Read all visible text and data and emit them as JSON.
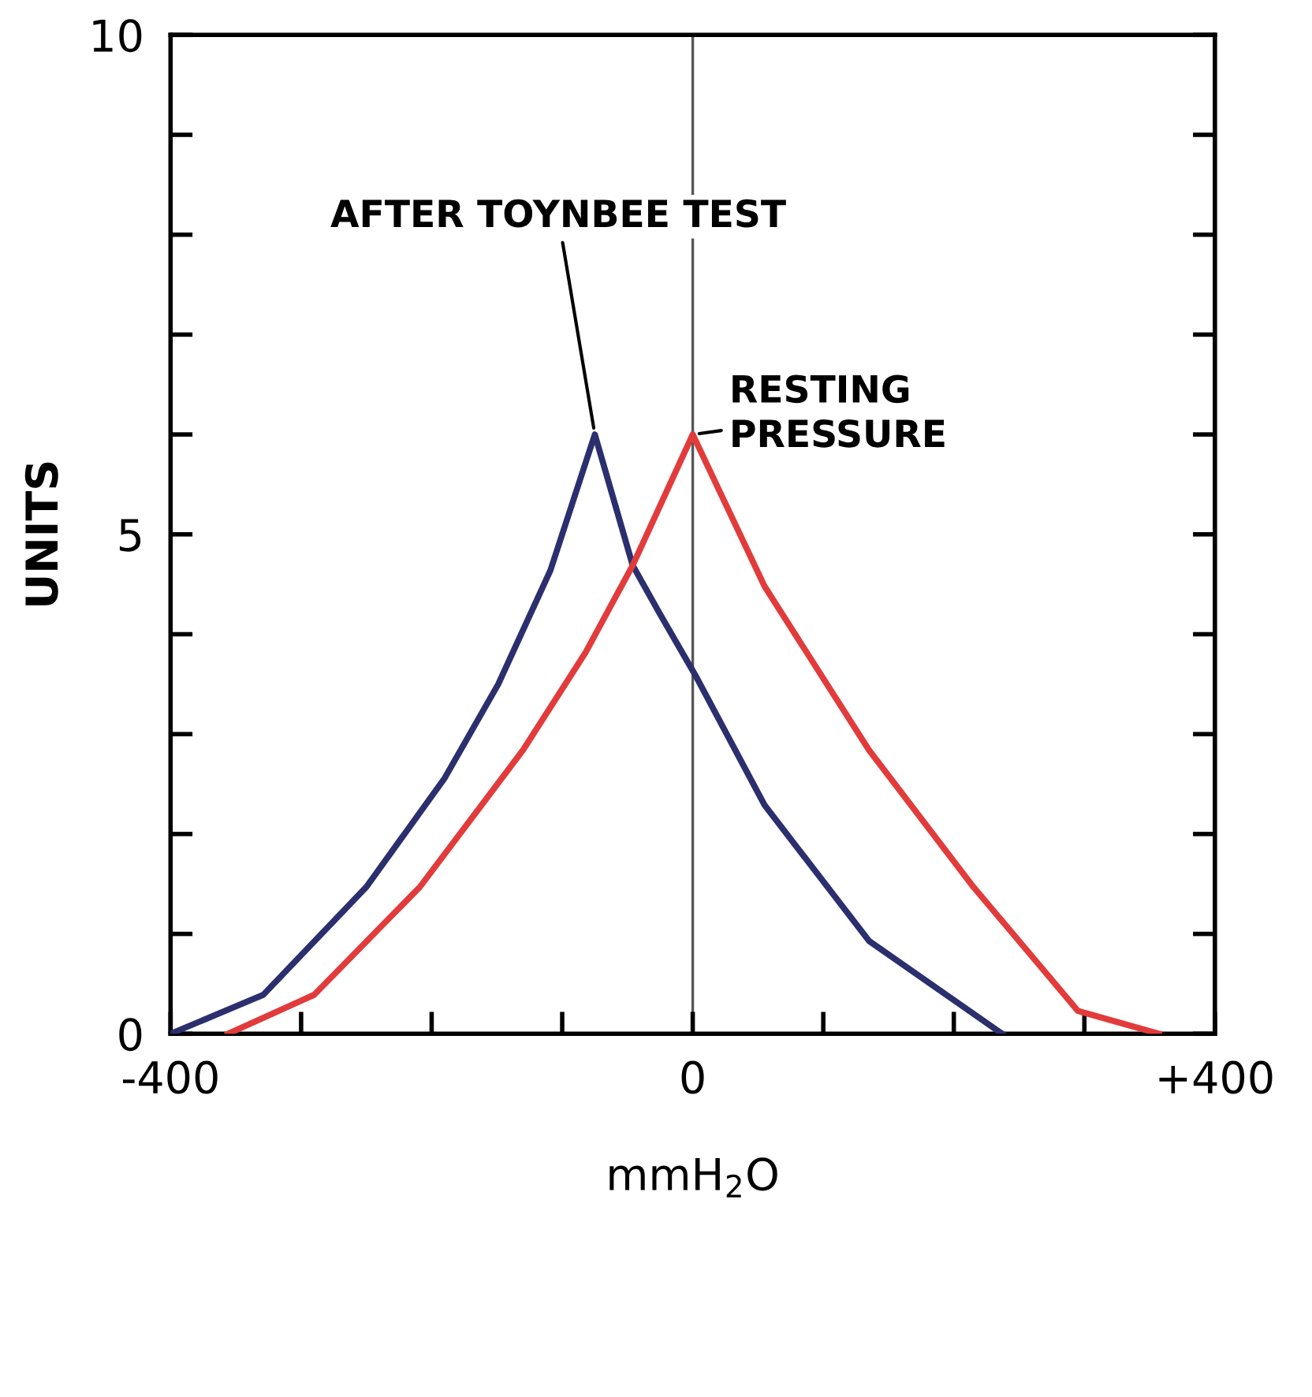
{
  "chart_data": {
    "type": "line",
    "xlabel": "mmH$_{2}$O",
    "ylabel": "UNITS",
    "xlim": [
      -400,
      400
    ],
    "ylim": [
      0,
      10
    ],
    "xticks": [
      {
        "value": -400,
        "label": "-400"
      },
      {
        "value": -300,
        "label": null
      },
      {
        "value": -200,
        "label": null
      },
      {
        "value": -100,
        "label": null
      },
      0,
      {
        "value": 100,
        "label": null
      },
      {
        "value": 200,
        "label": null
      },
      {
        "value": 300,
        "label": null
      },
      {
        "value": 400,
        "label": "+400"
      }
    ],
    "yticks": [
      0,
      {
        "value": 1,
        "label": null
      },
      {
        "value": 2,
        "label": null
      },
      {
        "value": 3,
        "label": null
      },
      {
        "value": 4,
        "label": null
      },
      5,
      {
        "value": 6,
        "label": null
      },
      {
        "value": 7,
        "label": null
      },
      {
        "value": 8,
        "label": null
      },
      {
        "value": 9,
        "label": null
      },
      10
    ],
    "grid": false,
    "legend": false,
    "marker": "none",
    "line_style": "solid",
    "series": [
      {
        "color": "#2b2f6e",
        "x": [
          -400,
          -329,
          -250,
          -190,
          -149,
          -109,
          -75,
          -46,
          -25,
          2,
          55,
          135,
          237
        ],
        "values": [
          0,
          0.39,
          1.47,
          2.56,
          3.5,
          4.64,
          6.0,
          4.69,
          4.2,
          3.59,
          2.29,
          0.93,
          0
        ]
      },
      {
        "color": "#e23b3b",
        "x": [
          -356,
          -290,
          -209,
          -130,
          -82,
          -46,
          0,
          55,
          135,
          215,
          295,
          357
        ],
        "values": [
          0,
          0.39,
          1.47,
          2.84,
          3.82,
          4.69,
          6.0,
          4.48,
          2.84,
          1.47,
          0.23,
          0
        ]
      }
    ],
    "ref_lines": [
      {
        "axis": "x",
        "value": 0,
        "color": "#555555"
      }
    ],
    "annotations": [
      {
        "text": "AFTER TOYNBEE TEST",
        "x": -75,
        "y": 6.0
      },
      {
        "text": "RESTING\nPRESSURE",
        "x": 0,
        "y": 6.0
      }
    ]
  }
}
